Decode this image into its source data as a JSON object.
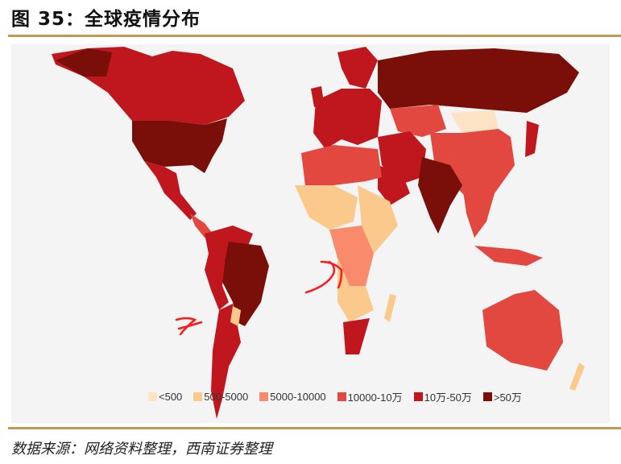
{
  "title": "图 35：全球疫情分布",
  "source": "数据来源：网络资料整理，西南证券整理",
  "legend": [
    {
      "label": "<500",
      "color": "#fde3c6"
    },
    {
      "label": "500-5000",
      "color": "#fcc98c"
    },
    {
      "label": "5000-10000",
      "color": "#fa8a6c"
    },
    {
      "label": "10000-10万",
      "color": "#e2483f"
    },
    {
      "label": "10万-50万",
      "color": "#c0161d"
    },
    {
      "label": ">50万",
      "color": "#7a0f0a"
    }
  ],
  "annotation_color": "#ff1a1a"
}
